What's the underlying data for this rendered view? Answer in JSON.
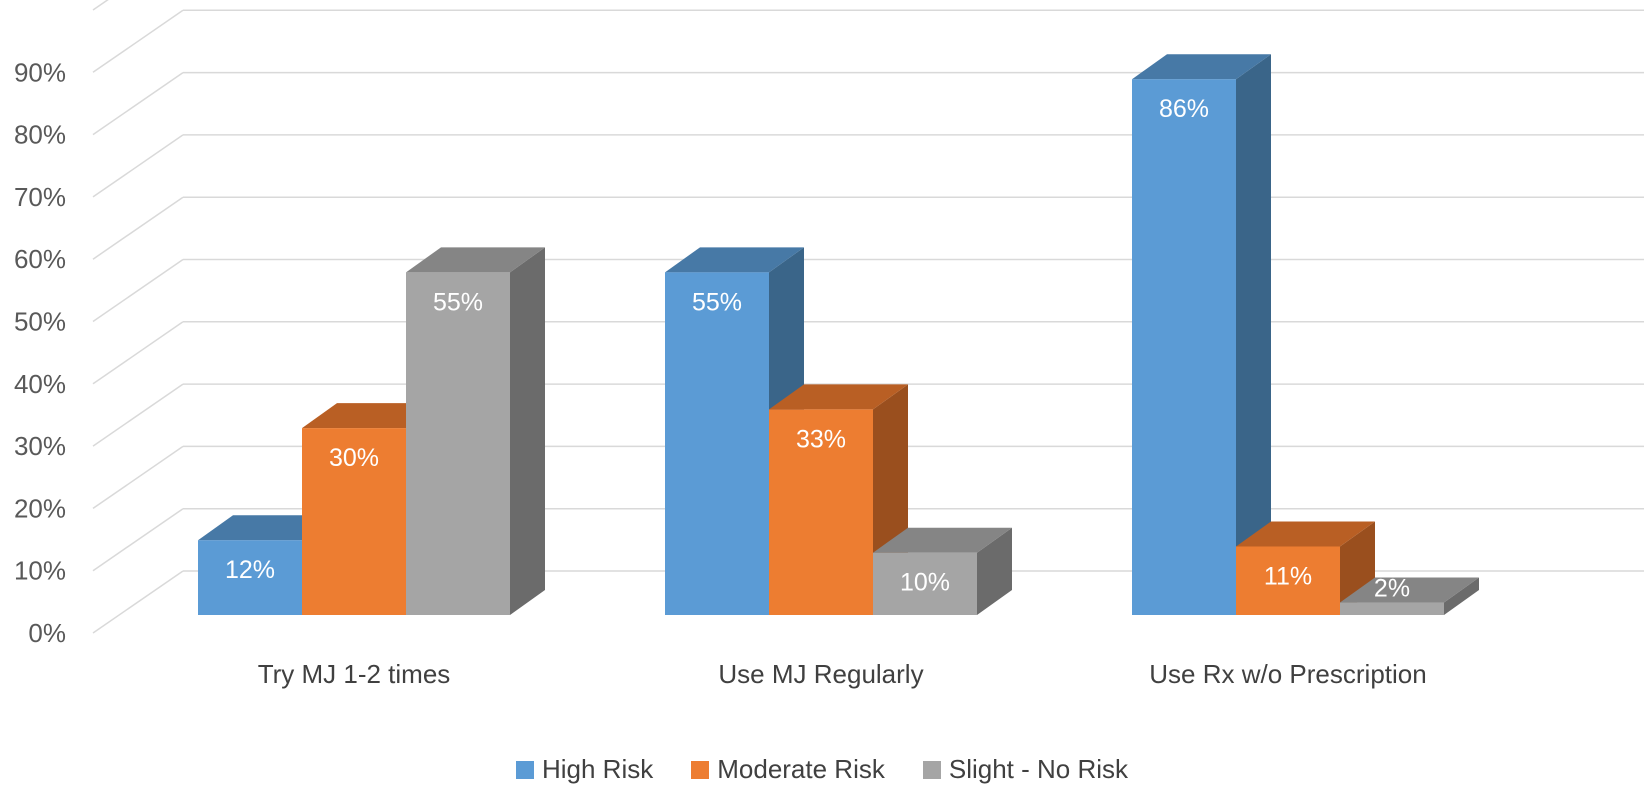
{
  "chart_data": {
    "type": "bar",
    "categories": [
      "Try MJ 1-2 times",
      "Use MJ Regularly",
      "Use Rx w/o Prescription"
    ],
    "series": [
      {
        "name": "High Risk",
        "values": [
          12,
          55,
          86
        ],
        "labels": [
          "12%",
          "55%",
          "86%"
        ],
        "color": "#5B9BD5",
        "side": "#3A6589",
        "top": "#4779A6"
      },
      {
        "name": "Moderate Risk",
        "values": [
          30,
          33,
          11
        ],
        "labels": [
          "30%",
          "33%",
          "11%"
        ],
        "color": "#ED7D31",
        "side": "#9A4F1E",
        "top": "#B95F24"
      },
      {
        "name": "Slight - No Risk",
        "values": [
          55,
          10,
          2
        ],
        "labels": [
          "55%",
          "10%",
          "2%"
        ],
        "color": "#A5A5A5",
        "side": "#6B6B6B",
        "top": "#858585"
      }
    ],
    "yticks": [
      "0%",
      "10%",
      "20%",
      "30%",
      "40%",
      "50%",
      "60%",
      "70%",
      "80%",
      "90%"
    ],
    "ylim": [
      0,
      90
    ],
    "grid": true,
    "three_d": true,
    "legend_position": "bottom"
  }
}
